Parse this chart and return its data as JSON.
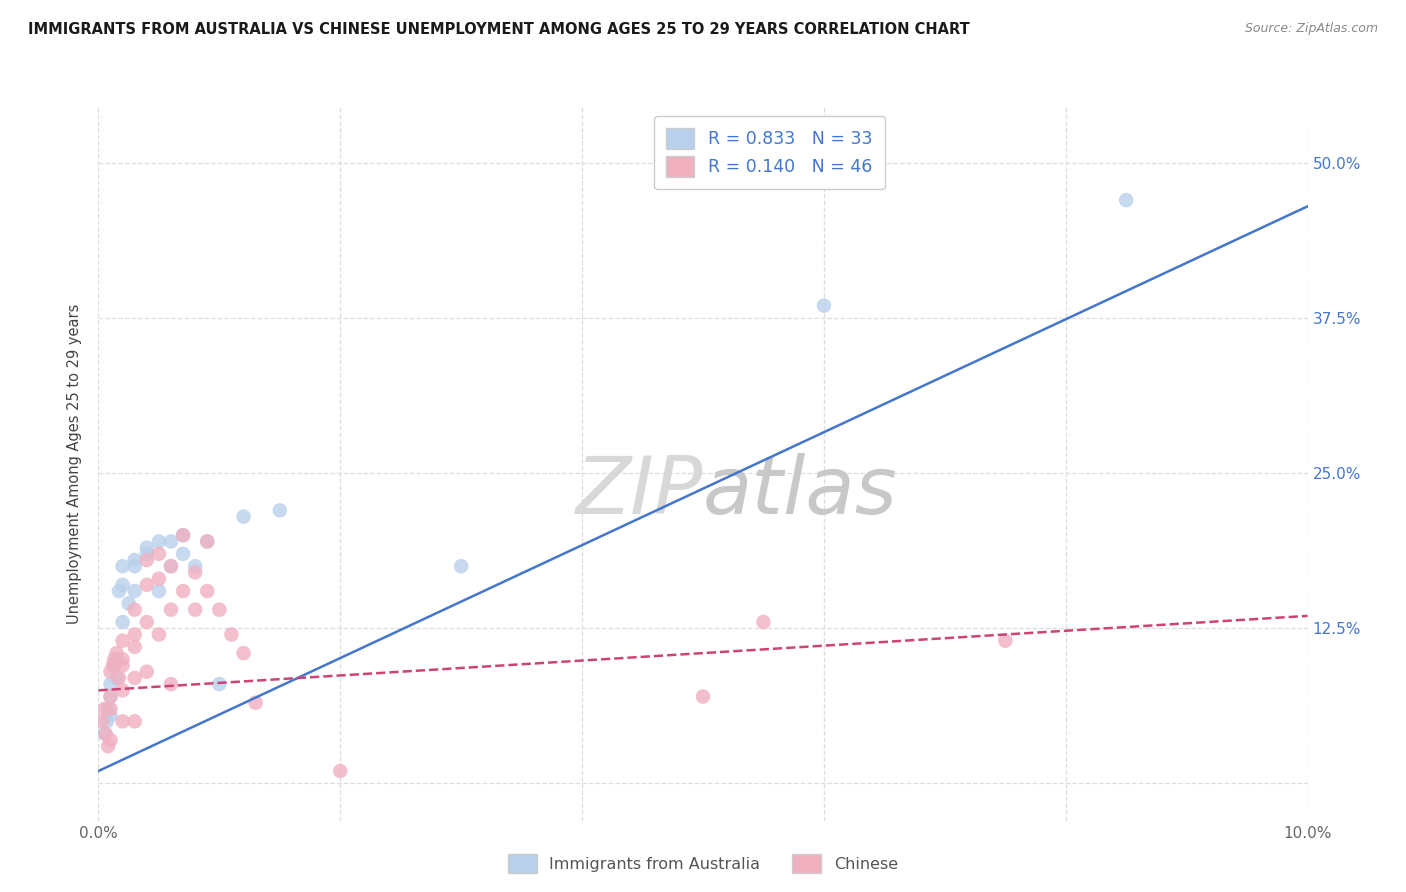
{
  "title": "IMMIGRANTS FROM AUSTRALIA VS CHINESE UNEMPLOYMENT AMONG AGES 25 TO 29 YEARS CORRELATION CHART",
  "source": "Source: ZipAtlas.com",
  "ylabel": "Unemployment Among Ages 25 to 29 years",
  "xlim": [
    0.0,
    0.1
  ],
  "ylim": [
    -0.03,
    0.545
  ],
  "xticks": [
    0.0,
    0.02,
    0.04,
    0.06,
    0.08,
    0.1
  ],
  "yticks": [
    0.0,
    0.125,
    0.25,
    0.375,
    0.5
  ],
  "xticklabels": [
    "0.0%",
    "",
    "",
    "",
    "",
    "10.0%"
  ],
  "right_yticklabels": [
    "",
    "12.5%",
    "25.0%",
    "37.5%",
    "50.0%"
  ],
  "background_color": "#ffffff",
  "grid_color": "#dddddd",
  "watermark_part1": "ZIP",
  "watermark_part2": "atlas",
  "series": [
    {
      "name": "Immigrants from Australia",
      "R": 0.833,
      "N": 33,
      "color": "#b8d0ec",
      "line_color": "#4477cc",
      "line_style": "solid",
      "x": [
        0.0005,
        0.0007,
        0.0008,
        0.001,
        0.001,
        0.001,
        0.0013,
        0.0015,
        0.0015,
        0.0017,
        0.002,
        0.002,
        0.002,
        0.0025,
        0.003,
        0.003,
        0.003,
        0.004,
        0.004,
        0.005,
        0.005,
        0.006,
        0.006,
        0.007,
        0.007,
        0.008,
        0.009,
        0.01,
        0.012,
        0.015,
        0.03,
        0.06,
        0.085
      ],
      "y": [
        0.04,
        0.05,
        0.06,
        0.07,
        0.08,
        0.055,
        0.095,
        0.085,
        0.1,
        0.155,
        0.13,
        0.16,
        0.175,
        0.145,
        0.155,
        0.18,
        0.175,
        0.185,
        0.19,
        0.195,
        0.155,
        0.175,
        0.195,
        0.2,
        0.185,
        0.175,
        0.195,
        0.08,
        0.215,
        0.22,
        0.175,
        0.385,
        0.47
      ],
      "trendline_x": [
        0.0,
        0.1
      ],
      "trendline_y": [
        0.01,
        0.465
      ]
    },
    {
      "name": "Chinese",
      "R": 0.14,
      "N": 46,
      "color": "#f0b0c0",
      "line_color": "#cc4477",
      "line_style": "dashed",
      "x": [
        0.0003,
        0.0005,
        0.0006,
        0.0008,
        0.001,
        0.001,
        0.001,
        0.001,
        0.0012,
        0.0013,
        0.0015,
        0.0017,
        0.002,
        0.002,
        0.002,
        0.002,
        0.002,
        0.003,
        0.003,
        0.003,
        0.003,
        0.003,
        0.004,
        0.004,
        0.004,
        0.004,
        0.005,
        0.005,
        0.005,
        0.006,
        0.006,
        0.006,
        0.007,
        0.007,
        0.008,
        0.008,
        0.009,
        0.009,
        0.01,
        0.011,
        0.012,
        0.013,
        0.02,
        0.05,
        0.055,
        0.075
      ],
      "y": [
        0.05,
        0.06,
        0.04,
        0.03,
        0.09,
        0.07,
        0.06,
        0.035,
        0.095,
        0.1,
        0.105,
        0.085,
        0.115,
        0.1,
        0.095,
        0.075,
        0.05,
        0.14,
        0.12,
        0.11,
        0.085,
        0.05,
        0.18,
        0.16,
        0.13,
        0.09,
        0.185,
        0.165,
        0.12,
        0.175,
        0.14,
        0.08,
        0.2,
        0.155,
        0.17,
        0.14,
        0.195,
        0.155,
        0.14,
        0.12,
        0.105,
        0.065,
        0.01,
        0.07,
        0.13,
        0.115
      ],
      "trendline_x": [
        0.0,
        0.1
      ],
      "trendline_y": [
        0.075,
        0.135
      ]
    }
  ],
  "legend_R_color": "#4477cc",
  "legend_N_color": "#4477cc",
  "legend_entries": [
    {
      "label_r": "R = 0.833",
      "label_n": "N = 33",
      "color": "#b8d0ec"
    },
    {
      "label_r": "R = 0.140",
      "label_n": "N = 46",
      "color": "#f0b0c0"
    }
  ],
  "bottom_legend": [
    {
      "label": "Immigrants from Australia",
      "color": "#b8d0ec"
    },
    {
      "label": "Chinese",
      "color": "#f0b0c0"
    }
  ]
}
